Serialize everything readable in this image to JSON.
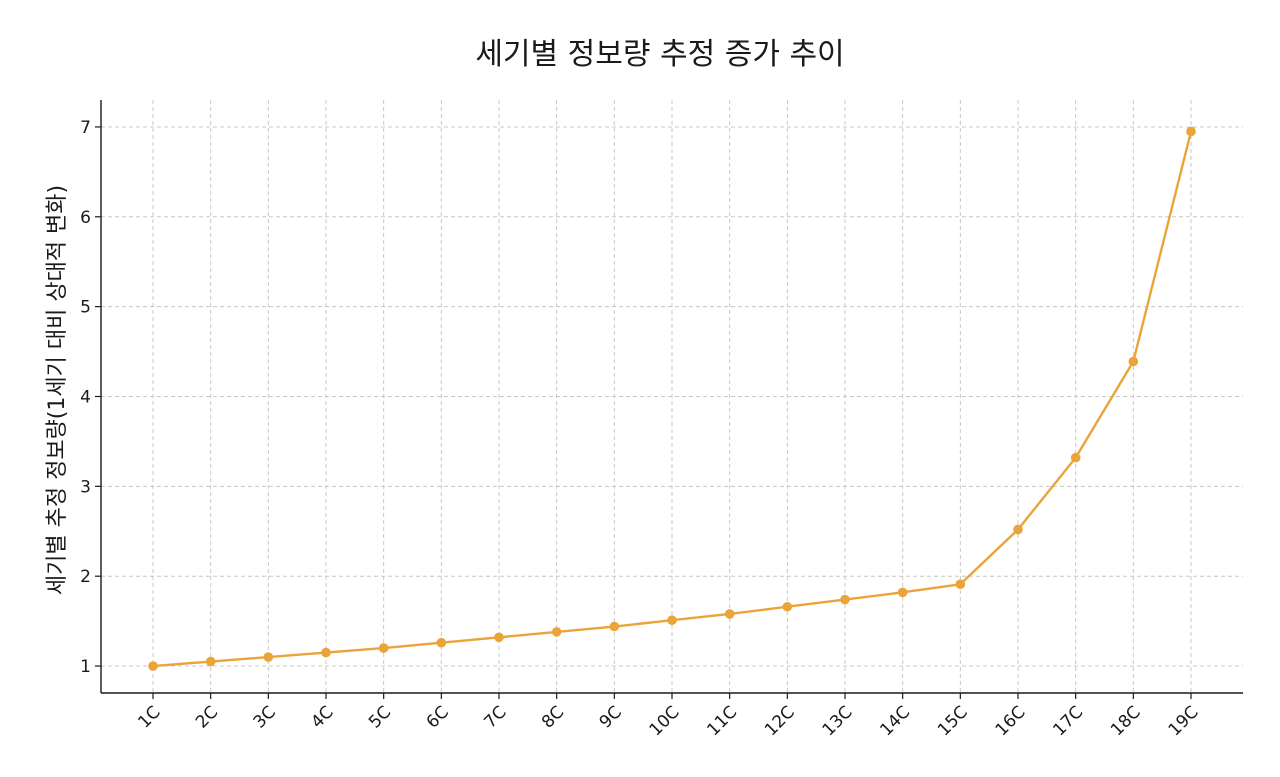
{
  "chart_data": {
    "type": "line",
    "title": "세기별 정보량 추정 증가 추이",
    "xlabel": "",
    "ylabel": "세기별 추정 정보량(1세기 대비 상대적 변화)",
    "categories": [
      "1C",
      "2C",
      "3C",
      "4C",
      "5C",
      "6C",
      "7C",
      "8C",
      "9C",
      "10C",
      "11C",
      "12C",
      "13C",
      "14C",
      "15C",
      "16C",
      "17C",
      "18C",
      "19C"
    ],
    "series": [
      {
        "values": [
          1.0,
          1.05,
          1.1,
          1.15,
          1.2,
          1.26,
          1.32,
          1.38,
          1.44,
          1.51,
          1.58,
          1.66,
          1.74,
          1.82,
          1.91,
          2.52,
          3.32,
          4.39,
          6.95
        ],
        "color": "#eaa43a"
      }
    ],
    "ylim": [
      0.7,
      7.3
    ],
    "yticks": [
      1,
      2,
      3,
      4,
      5,
      6,
      7
    ],
    "grid": true,
    "legend": "none"
  }
}
